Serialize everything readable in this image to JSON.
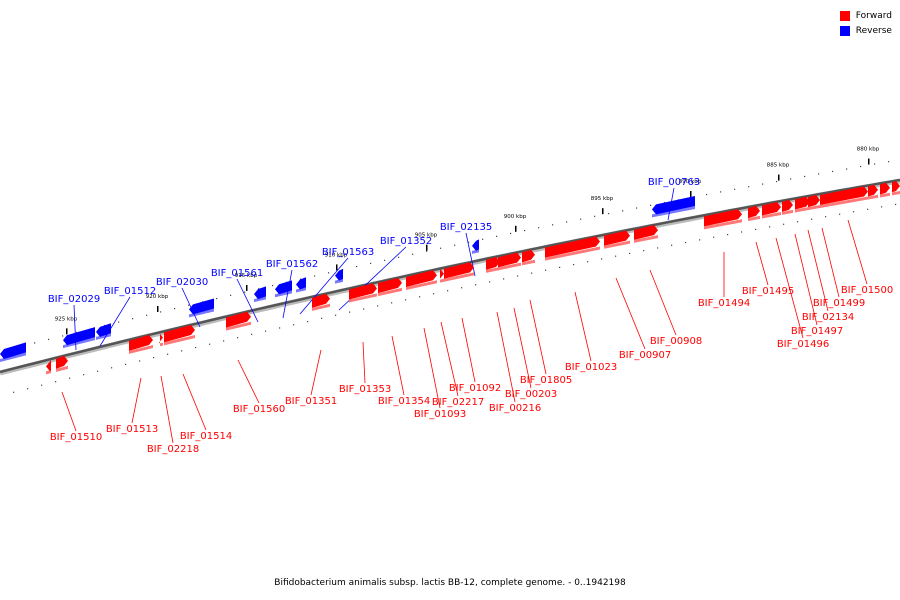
{
  "legend": {
    "forward": {
      "label": "Forward",
      "color": "#ff0000"
    },
    "reverse": {
      "label": "Reverse",
      "color": "#0000ff"
    }
  },
  "footer": "Bifidobacterium animalis subsp. lactis BB-12, complete genome. - 0..1942198",
  "kbp_labels": [
    "880 kbp",
    "885 kbp",
    "890 kbp",
    "895 kbp",
    "900 kbp",
    "905 kbp",
    "910 kbp",
    "915 kbp",
    "920 kbp",
    "925 kbp"
  ],
  "reverse_genes": [
    "BIF_00763",
    "BIF_02135",
    "BIF_01352",
    "BIF_01563",
    "BIF_01562",
    "BIF_01561",
    "BIF_02030",
    "BIF_01512",
    "BIF_02029"
  ],
  "forward_genes": [
    "BIF_01500",
    "BIF_01499",
    "BIF_02134",
    "BIF_01497",
    "BIF_01496",
    "BIF_01495",
    "BIF_01494",
    "BIF_00908",
    "BIF_00907",
    "BIF_01023",
    "BIF_01805",
    "BIF_00203",
    "BIF_00216",
    "BIF_01092",
    "BIF_02217",
    "BIF_01093",
    "BIF_01354",
    "BIF_01353",
    "BIF_01351",
    "BIF_01560",
    "BIF_01514",
    "BIF_02218",
    "BIF_01513",
    "BIF_01510"
  ]
}
